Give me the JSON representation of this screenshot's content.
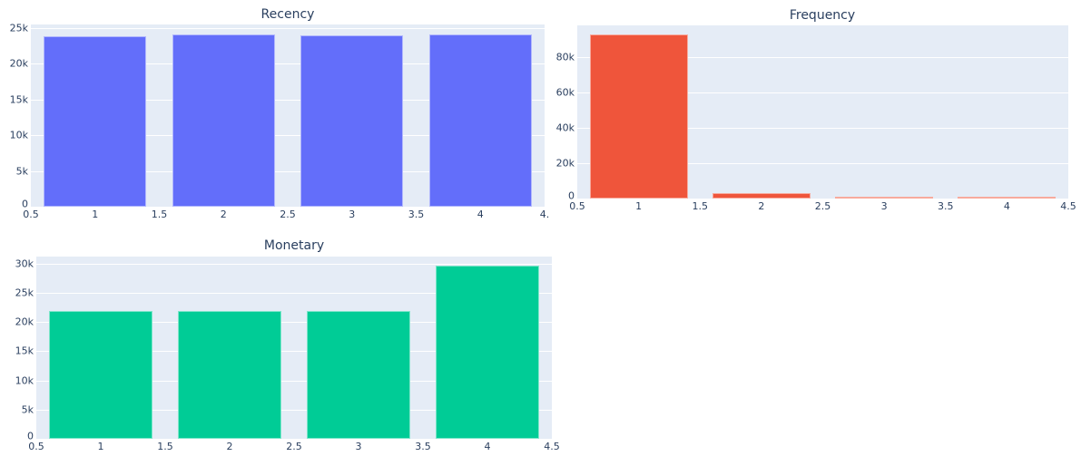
{
  "chart_data": [
    {
      "type": "bar",
      "title": "Recency",
      "categories": [
        1,
        2,
        3,
        4
      ],
      "values": [
        23850,
        24050,
        23970,
        24130
      ],
      "color": "#636efa",
      "xlabel": "",
      "ylabel": "",
      "xlim": [
        0.5,
        4.5
      ],
      "ylim": [
        0,
        25500
      ],
      "xticks": [
        "0.5",
        "1",
        "1.5",
        "2",
        "2.5",
        "3",
        "3.5",
        "4",
        "4."
      ],
      "yticks": [
        "0",
        "5k",
        "10k",
        "15k",
        "20k",
        "25k"
      ],
      "grid": true
    },
    {
      "type": "bar",
      "title": "Frequency",
      "categories": [
        1,
        2,
        3,
        4
      ],
      "values": [
        93100,
        2900,
        250,
        30
      ],
      "color": "#ef553b",
      "xlabel": "",
      "ylabel": "",
      "xlim": [
        0.5,
        4.5
      ],
      "ylim": [
        0,
        98000
      ],
      "xticks": [
        "0.5",
        "1",
        "1.5",
        "2",
        "2.5",
        "3",
        "3.5",
        "4",
        "4.5"
      ],
      "yticks": [
        "0",
        "20k",
        "40k",
        "60k",
        "80k"
      ],
      "grid": true
    },
    {
      "type": "bar",
      "title": "Monetary",
      "categories": [
        1,
        2,
        3,
        4
      ],
      "values": [
        21950,
        21950,
        21950,
        29600
      ],
      "color": "#00cc96",
      "xlabel": "",
      "ylabel": "",
      "xlim": [
        0.5,
        4.5
      ],
      "ylim": [
        0,
        31200
      ],
      "xticks": [
        "0.5",
        "1",
        "1.5",
        "2",
        "2.5",
        "3",
        "3.5",
        "4",
        "4.5"
      ],
      "yticks": [
        "0",
        "5k",
        "10k",
        "15k",
        "20k",
        "25k",
        "30k"
      ],
      "grid": true
    }
  ],
  "layout": {
    "plot_bg": "#e5ecf6",
    "paper_bg": "#ffffff",
    "font_color": "#2a3f5f"
  }
}
